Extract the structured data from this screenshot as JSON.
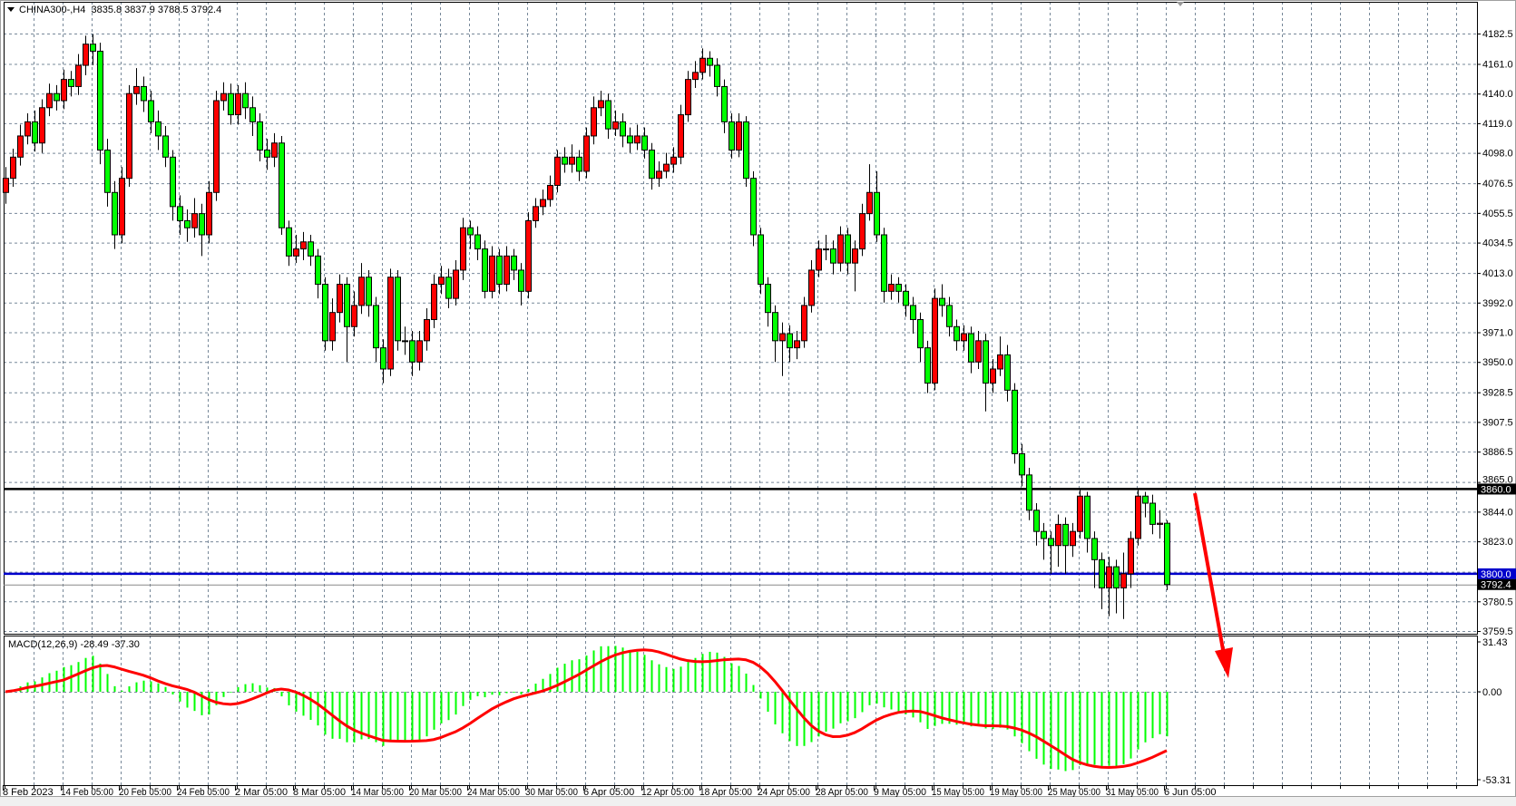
{
  "header": {
    "symbol": "CHINA300-,H4",
    "ohlc_text": "3835.8 3837.9 3788.5 3792.4"
  },
  "indicator": {
    "label": "MACD(12,26,9) -28.49 -37.30",
    "fast": 12,
    "slow": 26,
    "signal": 9
  },
  "colors": {
    "bull": "#ff0000",
    "bear": "#00ff00",
    "grid": "#778899",
    "resistance": "#000000",
    "support": "#0000cc",
    "macd_hist": "#00ff00",
    "signal_line": "#ff0000",
    "arrow": "#ff0000"
  },
  "chart_data": {
    "type": "candlestick",
    "timeframe": "H4",
    "ylim": [
      3759.5,
      4182.5
    ],
    "price_ticks": [
      "4182.5",
      "4161.0",
      "4140.0",
      "4119.0",
      "4098.0",
      "4076.5",
      "4055.5",
      "4034.5",
      "4013.0",
      "3992.0",
      "3971.0",
      "3950.0",
      "3928.5",
      "3907.5",
      "3886.5",
      "3865.0",
      "3844.0",
      "3823.0",
      "3780.5",
      "3759.5"
    ],
    "time_labels": [
      "8 Feb 2023",
      "14 Feb 05:00",
      "20 Feb 05:00",
      "24 Feb 05:00",
      "2 Mar 05:00",
      "8 Mar 05:00",
      "14 Mar 05:00",
      "20 Mar 05:00",
      "24 Mar 05:00",
      "30 Mar 05:00",
      "6 Apr 05:00",
      "12 Apr 05:00",
      "18 Apr 05:00",
      "24 Apr 05:00",
      "28 Apr 05:00",
      "9 May 05:00",
      "15 May 05:00",
      "19 May 05:00",
      "25 May 05:00",
      "31 May 05:00",
      "6 Jun 05:00"
    ],
    "hlines": [
      {
        "price": 3860.0,
        "label": "3860.0",
        "color": "#000000"
      },
      {
        "price": 3800.0,
        "label": "3800.0",
        "color": "#0000cc"
      }
    ],
    "bid": {
      "price": 3792.4,
      "label": "3792.4"
    },
    "macd_ylim": [
      -53.31,
      31.43
    ],
    "macd_ticks": [
      "31.43",
      "0.00",
      "-53.31"
    ],
    "grid": true,
    "grid_price_ticks": [
      4182.5,
      4161.0,
      4140.0,
      4119.0,
      4098.0,
      4076.5,
      4055.5,
      4034.5,
      4013.0,
      3992.0,
      3971.0,
      3950.0,
      3928.5,
      3907.5,
      3886.5,
      3865.0,
      3844.0,
      3823.0,
      3801.5,
      3780.5,
      3759.5
    ],
    "ohlc": [
      [
        4070,
        4088,
        4062,
        4080
      ],
      [
        4080,
        4101,
        4074,
        4095
      ],
      [
        4095,
        4118,
        4089,
        4110
      ],
      [
        4110,
        4126,
        4104,
        4120
      ],
      [
        4120,
        4128,
        4099,
        4105
      ],
      [
        4105,
        4136,
        4098,
        4130
      ],
      [
        4130,
        4147,
        4124,
        4140
      ],
      [
        4140,
        4146,
        4128,
        4135
      ],
      [
        4135,
        4157,
        4129,
        4150
      ],
      [
        4150,
        4156,
        4138,
        4145
      ],
      [
        4145,
        4168,
        4139,
        4160
      ],
      [
        4160,
        4181,
        4153,
        4175
      ],
      [
        4175,
        4182,
        4160,
        4170
      ],
      [
        4170,
        4176,
        4090,
        4100
      ],
      [
        4100,
        4108,
        4060,
        4070
      ],
      [
        4070,
        4078,
        4030,
        4040
      ],
      [
        4040,
        4088,
        4034,
        4080
      ],
      [
        4080,
        4146,
        4074,
        4140
      ],
      [
        4140,
        4158,
        4132,
        4145
      ],
      [
        4145,
        4152,
        4127,
        4135
      ],
      [
        4135,
        4142,
        4112,
        4120
      ],
      [
        4120,
        4128,
        4100,
        4110
      ],
      [
        4110,
        4117,
        4088,
        4095
      ],
      [
        4095,
        4100,
        4050,
        4060
      ],
      [
        4060,
        4068,
        4040,
        4050
      ],
      [
        4050,
        4058,
        4035,
        4045
      ],
      [
        4045,
        4066,
        4038,
        4055
      ],
      [
        4055,
        4062,
        4025,
        4040
      ],
      [
        4040,
        4078,
        4034,
        4070
      ],
      [
        4070,
        4142,
        4064,
        4135
      ],
      [
        4135,
        4148,
        4128,
        4140
      ],
      [
        4140,
        4147,
        4118,
        4125
      ],
      [
        4125,
        4146,
        4118,
        4140
      ],
      [
        4140,
        4148,
        4122,
        4130
      ],
      [
        4130,
        4138,
        4110,
        4120
      ],
      [
        4120,
        4126,
        4092,
        4100
      ],
      [
        4100,
        4108,
        4086,
        4095
      ],
      [
        4095,
        4112,
        4088,
        4105
      ],
      [
        4105,
        4110,
        4040,
        4045
      ],
      [
        4045,
        4050,
        4018,
        4025
      ],
      [
        4025,
        4040,
        4020,
        4030
      ],
      [
        4030,
        4042,
        4022,
        4035
      ],
      [
        4035,
        4040,
        4018,
        4025
      ],
      [
        4025,
        4030,
        3995,
        4005
      ],
      [
        4005,
        4010,
        3958,
        3965
      ],
      [
        3965,
        3995,
        3958,
        3985
      ],
      [
        3985,
        4012,
        3978,
        4005
      ],
      [
        4005,
        4010,
        3950,
        3975
      ],
      [
        3975,
        4000,
        3968,
        3990
      ],
      [
        3990,
        4020,
        3984,
        4010
      ],
      [
        4010,
        4015,
        3982,
        3990
      ],
      [
        3990,
        3996,
        3950,
        3960
      ],
      [
        3960,
        3966,
        3935,
        3945
      ],
      [
        3945,
        4016,
        3940,
        4010
      ],
      [
        4010,
        4015,
        3958,
        3965
      ],
      [
        3965,
        3975,
        3955,
        3965
      ],
      [
        3965,
        3972,
        3940,
        3950
      ],
      [
        3950,
        3972,
        3944,
        3965
      ],
      [
        3965,
        3988,
        3958,
        3980
      ],
      [
        3980,
        4012,
        3974,
        4005
      ],
      [
        4005,
        4018,
        3998,
        4010
      ],
      [
        4010,
        4016,
        3988,
        3995
      ],
      [
        3995,
        4022,
        3990,
        4015
      ],
      [
        4015,
        4052,
        4008,
        4045
      ],
      [
        4045,
        4050,
        4030,
        4040
      ],
      [
        4040,
        4046,
        4022,
        4030
      ],
      [
        4030,
        4036,
        3995,
        4000
      ],
      [
        4000,
        4032,
        3995,
        4025
      ],
      [
        4025,
        4030,
        3998,
        4005
      ],
      [
        4005,
        4032,
        4000,
        4025
      ],
      [
        4025,
        4030,
        4008,
        4015
      ],
      [
        4015,
        4020,
        3990,
        4000
      ],
      [
        4000,
        4056,
        3995,
        4050
      ],
      [
        4050,
        4066,
        4045,
        4060
      ],
      [
        4060,
        4072,
        4054,
        4065
      ],
      [
        4065,
        4082,
        4060,
        4075
      ],
      [
        4075,
        4100,
        4070,
        4095
      ],
      [
        4095,
        4102,
        4084,
        4090
      ],
      [
        4090,
        4104,
        4084,
        4095
      ],
      [
        4095,
        4100,
        4078,
        4085
      ],
      [
        4085,
        4116,
        4080,
        4110
      ],
      [
        4110,
        4138,
        4104,
        4130
      ],
      [
        4130,
        4142,
        4124,
        4135
      ],
      [
        4135,
        4140,
        4108,
        4115
      ],
      [
        4115,
        4128,
        4110,
        4120
      ],
      [
        4120,
        4126,
        4102,
        4110
      ],
      [
        4110,
        4116,
        4098,
        4105
      ],
      [
        4105,
        4118,
        4100,
        4110
      ],
      [
        4110,
        4116,
        4094,
        4100
      ],
      [
        4100,
        4105,
        4072,
        4080
      ],
      [
        4080,
        4092,
        4074,
        4085
      ],
      [
        4085,
        4098,
        4080,
        4090
      ],
      [
        4090,
        4102,
        4084,
        4095
      ],
      [
        4095,
        4132,
        4090,
        4125
      ],
      [
        4125,
        4156,
        4120,
        4150
      ],
      [
        4150,
        4163,
        4144,
        4155
      ],
      [
        4155,
        4172,
        4150,
        4165
      ],
      [
        4165,
        4170,
        4152,
        4160
      ],
      [
        4160,
        4165,
        4138,
        4145
      ],
      [
        4145,
        4150,
        4112,
        4120
      ],
      [
        4120,
        4126,
        4094,
        4100
      ],
      [
        4100,
        4126,
        4095,
        4120
      ],
      [
        4120,
        4124,
        4074,
        4080
      ],
      [
        4080,
        4085,
        4032,
        4040
      ],
      [
        4040,
        4045,
        3998,
        4005
      ],
      [
        4005,
        4010,
        3975,
        3985
      ],
      [
        3985,
        3990,
        3950,
        3965
      ],
      [
        3965,
        3978,
        3940,
        3970
      ],
      [
        3970,
        3976,
        3950,
        3960
      ],
      [
        3960,
        3972,
        3952,
        3965
      ],
      [
        3965,
        3996,
        3960,
        3990
      ],
      [
        3990,
        4022,
        3985,
        4015
      ],
      [
        4015,
        4036,
        4010,
        4030
      ],
      [
        4030,
        4040,
        4022,
        4030
      ],
      [
        4030,
        4036,
        4012,
        4020
      ],
      [
        4020,
        4046,
        4014,
        4040
      ],
      [
        4040,
        4045,
        4012,
        4020
      ],
      [
        4020,
        4036,
        4000,
        4030
      ],
      [
        4030,
        4062,
        4025,
        4055
      ],
      [
        4055,
        4090,
        4050,
        4070
      ],
      [
        4070,
        4085,
        4035,
        4040
      ],
      [
        4040,
        4045,
        3992,
        4000
      ],
      [
        4000,
        4012,
        3994,
        4005
      ],
      [
        4005,
        4010,
        3992,
        4000
      ],
      [
        4000,
        4005,
        3982,
        3990
      ],
      [
        3990,
        3996,
        3970,
        3980
      ],
      [
        3980,
        3985,
        3950,
        3960
      ],
      [
        3960,
        3965,
        3928,
        3935
      ],
      [
        3935,
        4002,
        3930,
        3995
      ],
      [
        3995,
        4005,
        3982,
        3990
      ],
      [
        3990,
        3996,
        3968,
        3975
      ],
      [
        3975,
        3980,
        3958,
        3965
      ],
      [
        3965,
        3976,
        3958,
        3970
      ],
      [
        3970,
        3975,
        3942,
        3950
      ],
      [
        3950,
        3972,
        3945,
        3965
      ],
      [
        3965,
        3970,
        3915,
        3935
      ],
      [
        3935,
        3952,
        3928,
        3945
      ],
      [
        3945,
        3968,
        3940,
        3955
      ],
      [
        3955,
        3962,
        3922,
        3930
      ],
      [
        3930,
        3935,
        3878,
        3885
      ],
      [
        3885,
        3892,
        3862,
        3870
      ],
      [
        3870,
        3875,
        3838,
        3845
      ],
      [
        3845,
        3850,
        3820,
        3830
      ],
      [
        3830,
        3836,
        3810,
        3825
      ],
      [
        3825,
        3830,
        3800,
        3820
      ],
      [
        3820,
        3842,
        3805,
        3835
      ],
      [
        3835,
        3840,
        3800,
        3820
      ],
      [
        3820,
        3836,
        3812,
        3830
      ],
      [
        3830,
        3860,
        3825,
        3855
      ],
      [
        3855,
        3858,
        3815,
        3825
      ],
      [
        3825,
        3830,
        3790,
        3810
      ],
      [
        3810,
        3815,
        3775,
        3790
      ],
      [
        3790,
        3812,
        3770,
        3805
      ],
      [
        3805,
        3810,
        3772,
        3790
      ],
      [
        3790,
        3815,
        3768,
        3800
      ],
      [
        3800,
        3830,
        3790,
        3825
      ],
      [
        3825,
        3860,
        3820,
        3855
      ],
      [
        3855,
        3858,
        3840,
        3850
      ],
      [
        3850,
        3856,
        3828,
        3835
      ],
      [
        3835,
        3845,
        3825,
        3835.8
      ],
      [
        3835.8,
        3837.9,
        3788.5,
        3792.4
      ]
    ]
  }
}
